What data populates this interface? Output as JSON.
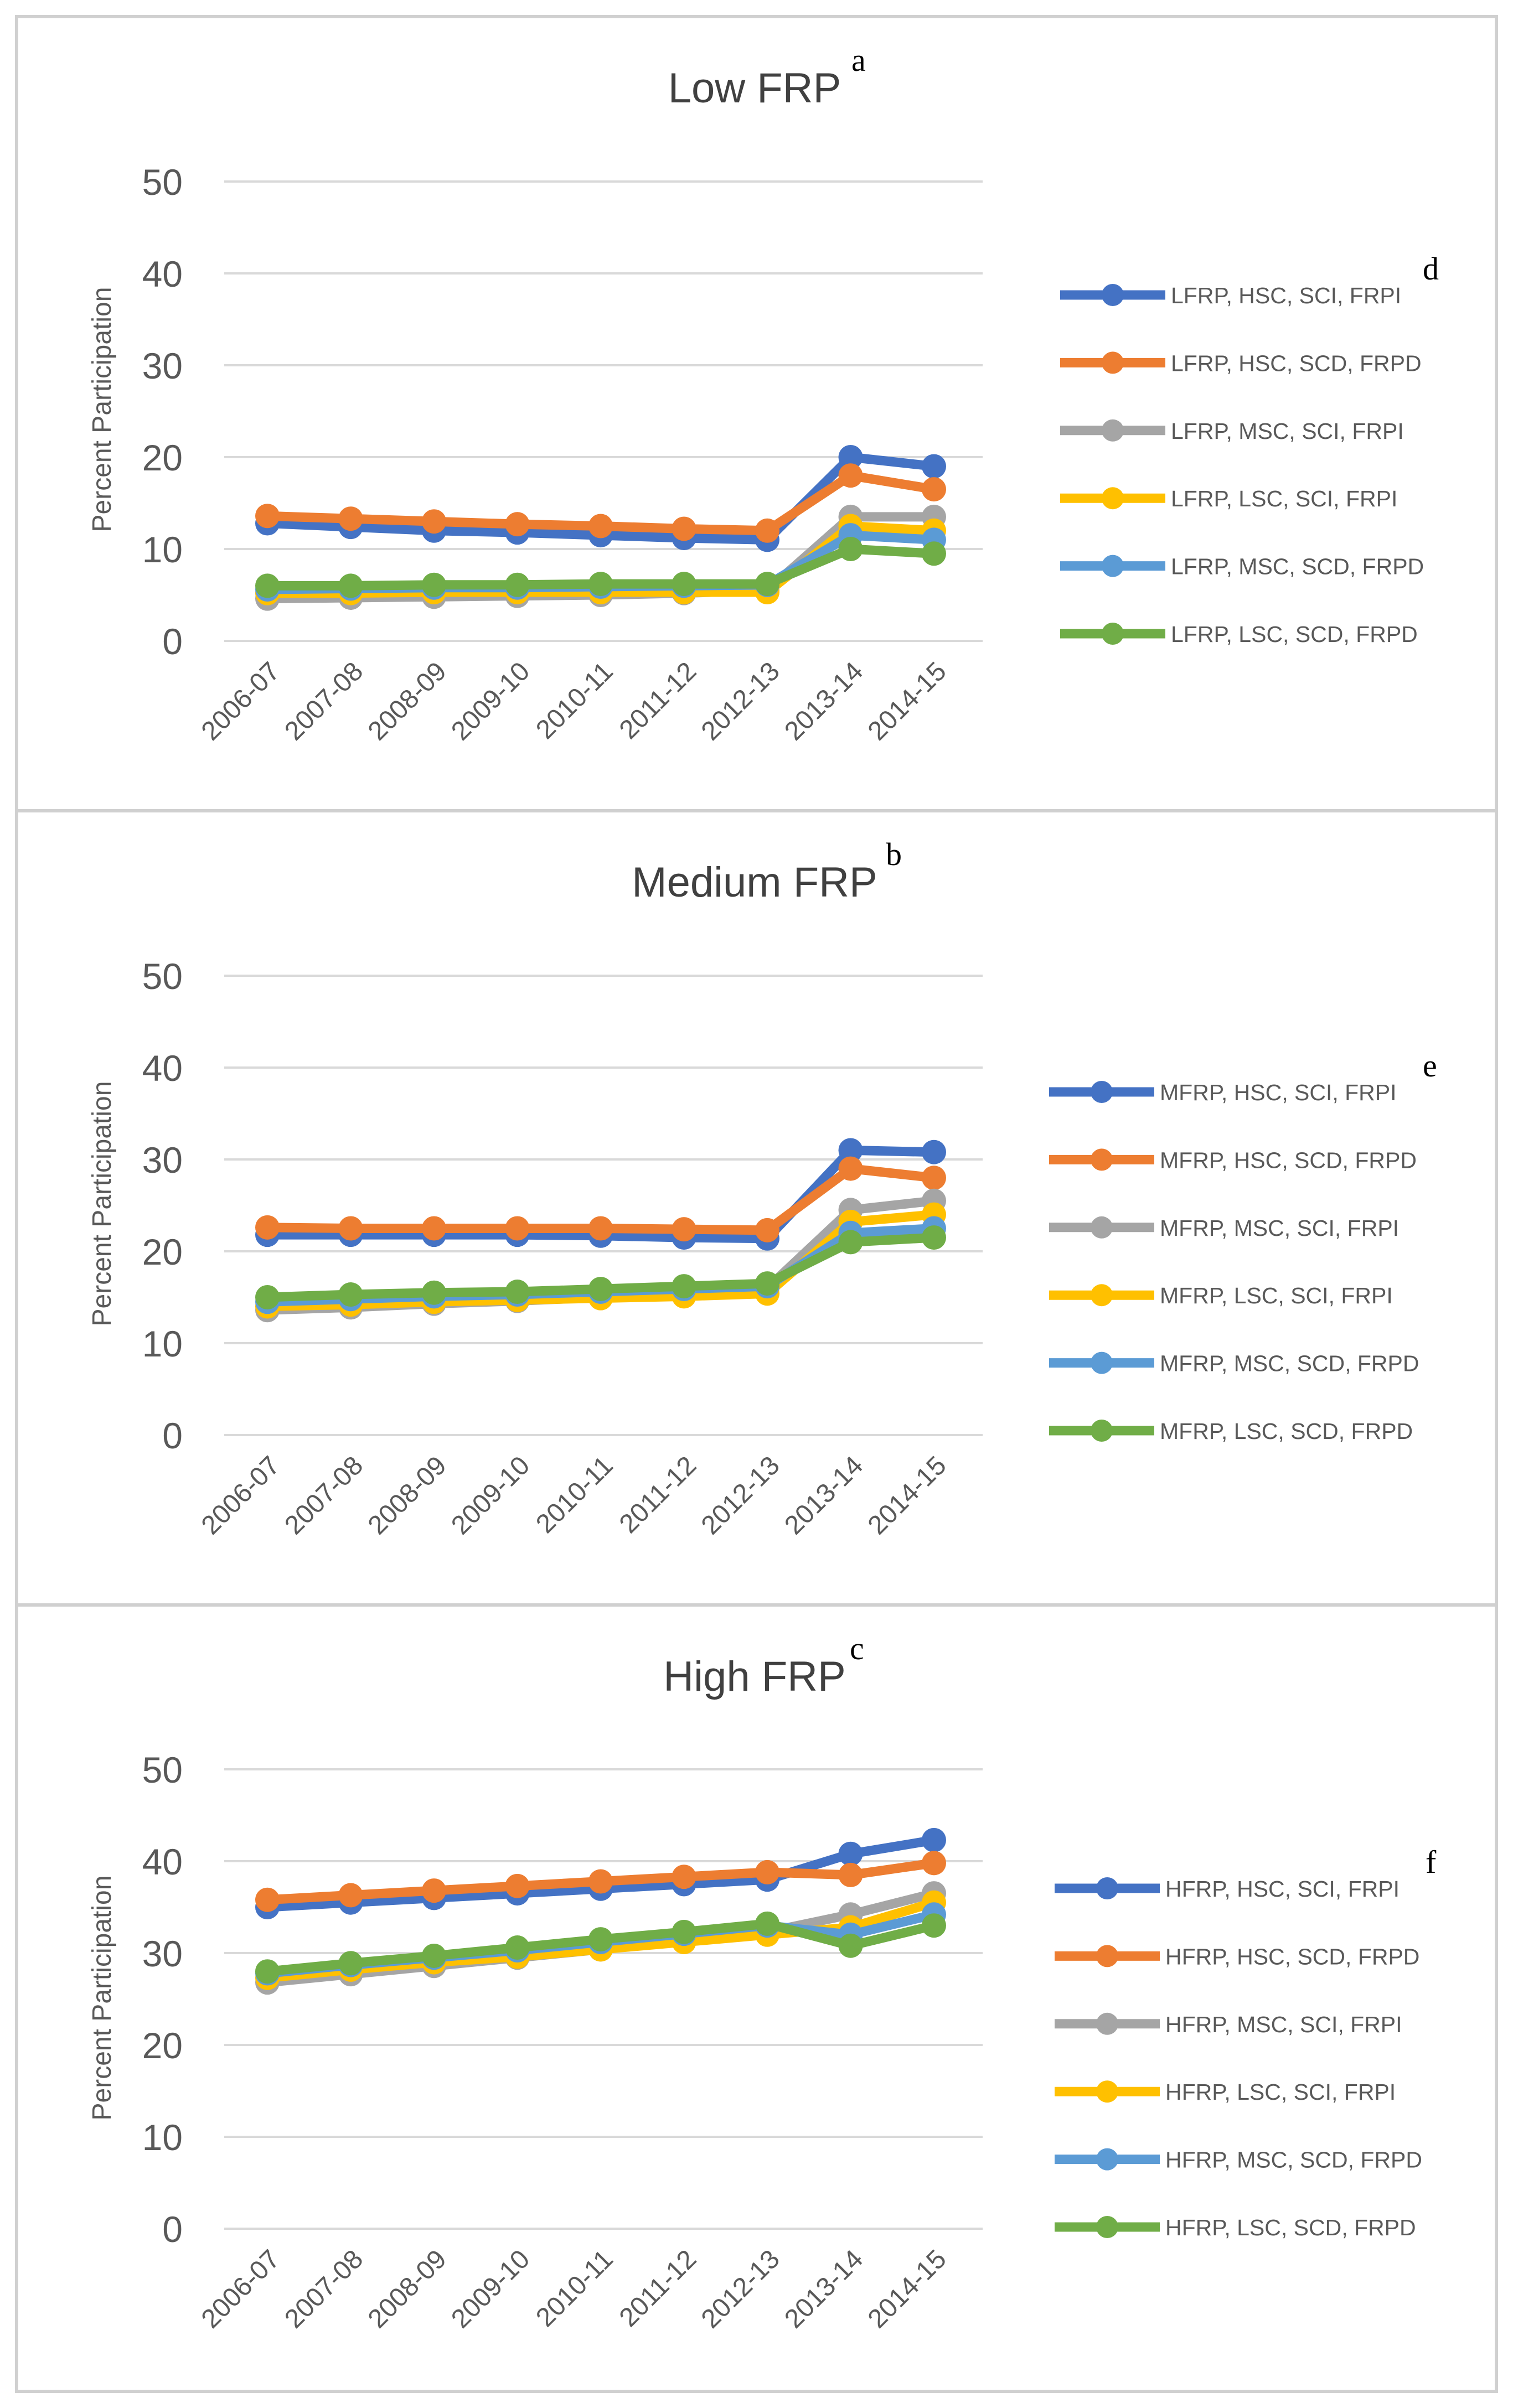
{
  "chart_data": [
    {
      "type": "line",
      "title": "Low FRP",
      "title_superscript": "a",
      "legend_superscript": "d",
      "ylabel": "Percent Participation",
      "xlabel": "",
      "ylim": [
        0,
        50
      ],
      "yticks": [
        "0",
        "10",
        "20",
        "30",
        "40",
        "50"
      ],
      "grid": true,
      "legend_position": "right",
      "categories": [
        "2006-07",
        "2007-08",
        "2008-09",
        "2009-10",
        "2010-11",
        "2011-12",
        "2012-13",
        "2013-14",
        "2014-15"
      ],
      "series": [
        {
          "name": "LFRP, HSC, SCI, FRPI",
          "color": "#4472C4",
          "values": [
            12.8,
            12.4,
            12.0,
            11.8,
            11.5,
            11.2,
            11.0,
            20.0,
            19.0
          ]
        },
        {
          "name": "LFRP, HSC, SCD, FRPD",
          "color": "#ED7D31",
          "values": [
            13.6,
            13.3,
            13.0,
            12.7,
            12.5,
            12.2,
            12.0,
            18.0,
            16.5
          ]
        },
        {
          "name": "LFRP, MSC, SCI, FRPI",
          "color": "#A5A5A5",
          "values": [
            4.6,
            4.7,
            4.8,
            4.9,
            5.0,
            5.2,
            5.5,
            13.5,
            13.5
          ]
        },
        {
          "name": "LFRP, LSC, SCI, FRPI",
          "color": "#FFC000",
          "values": [
            5.2,
            5.2,
            5.3,
            5.3,
            5.3,
            5.3,
            5.3,
            12.5,
            12.0
          ]
        },
        {
          "name": "LFRP, MSC, SCD, FRPD",
          "color": "#5B9BD5",
          "values": [
            5.6,
            5.7,
            5.8,
            5.8,
            5.9,
            6.0,
            6.1,
            11.5,
            11.0
          ]
        },
        {
          "name": "LFRP, LSC, SCD, FRPD",
          "color": "#70AD47",
          "values": [
            6.0,
            6.0,
            6.1,
            6.1,
            6.2,
            6.2,
            6.2,
            10.0,
            9.5
          ]
        }
      ]
    },
    {
      "type": "line",
      "title": "Medium FRP",
      "title_superscript": "b",
      "legend_superscript": "e",
      "ylabel": "Percent Participation",
      "xlabel": "",
      "ylim": [
        0,
        50
      ],
      "yticks": [
        "0",
        "10",
        "20",
        "30",
        "40",
        "50"
      ],
      "grid": true,
      "legend_position": "right",
      "categories": [
        "2006-07",
        "2007-08",
        "2008-09",
        "2009-10",
        "2010-11",
        "2011-12",
        "2012-13",
        "2013-14",
        "2014-15"
      ],
      "series": [
        {
          "name": "MFRP, HSC, SCI, FRPI",
          "color": "#4472C4",
          "values": [
            21.8,
            21.8,
            21.8,
            21.8,
            21.7,
            21.5,
            21.4,
            31.0,
            30.8
          ]
        },
        {
          "name": "MFRP, HSC, SCD, FRPD",
          "color": "#ED7D31",
          "values": [
            22.6,
            22.5,
            22.5,
            22.5,
            22.5,
            22.4,
            22.3,
            29.0,
            28.0
          ]
        },
        {
          "name": "MFRP, MSC, SCI, FRPI",
          "color": "#A5A5A5",
          "values": [
            13.6,
            13.9,
            14.3,
            14.6,
            15.0,
            15.5,
            16.0,
            24.5,
            25.5
          ]
        },
        {
          "name": "MFRP, LSC, SCI, FRPI",
          "color": "#FFC000",
          "values": [
            14.0,
            14.2,
            14.5,
            14.7,
            14.9,
            15.1,
            15.4,
            23.2,
            24.0
          ]
        },
        {
          "name": "MFRP, MSC, SCD, FRPD",
          "color": "#5B9BD5",
          "values": [
            14.5,
            14.8,
            15.1,
            15.3,
            15.6,
            15.9,
            16.2,
            22.0,
            22.5
          ]
        },
        {
          "name": "MFRP, LSC, SCD, FRPD",
          "color": "#70AD47",
          "values": [
            15.0,
            15.3,
            15.5,
            15.6,
            15.9,
            16.2,
            16.5,
            21.0,
            21.5
          ]
        }
      ]
    },
    {
      "type": "line",
      "title": "High FRP",
      "title_superscript": "c",
      "legend_superscript": "f",
      "ylabel": "Percent Participation",
      "xlabel": "",
      "ylim": [
        0,
        50
      ],
      "yticks": [
        "0",
        "10",
        "20",
        "30",
        "40",
        "50"
      ],
      "grid": true,
      "legend_position": "right",
      "categories": [
        "2006-07",
        "2007-08",
        "2008-09",
        "2009-10",
        "2010-11",
        "2011-12",
        "2012-13",
        "2013-14",
        "2014-15"
      ],
      "series": [
        {
          "name": "HFRP, HSC, SCI, FRPI",
          "color": "#4472C4",
          "values": [
            35.0,
            35.5,
            36.0,
            36.5,
            37.0,
            37.5,
            38.0,
            40.8,
            42.3
          ]
        },
        {
          "name": "HFRP, HSC, SCD, FRPD",
          "color": "#ED7D31",
          "values": [
            35.8,
            36.3,
            36.8,
            37.3,
            37.8,
            38.3,
            38.8,
            38.5,
            39.8
          ]
        },
        {
          "name": "HFRP, MSC, SCI, FRPI",
          "color": "#A5A5A5",
          "values": [
            26.8,
            27.7,
            28.6,
            29.5,
            30.4,
            31.3,
            32.3,
            34.2,
            36.5
          ]
        },
        {
          "name": "HFRP, LSC, SCI, FRPI",
          "color": "#FFC000",
          "values": [
            27.3,
            28.2,
            29.0,
            29.6,
            30.4,
            31.2,
            32.0,
            32.8,
            35.5
          ]
        },
        {
          "name": "HFRP, MSC, SCD, FRPD",
          "color": "#5B9BD5",
          "values": [
            27.8,
            28.7,
            29.5,
            30.3,
            31.2,
            32.1,
            33.0,
            32.0,
            34.2
          ]
        },
        {
          "name": "HFRP, LSC, SCD, FRPD",
          "color": "#70AD47",
          "values": [
            28.0,
            28.9,
            29.7,
            30.6,
            31.5,
            32.3,
            33.2,
            30.8,
            33.0
          ]
        }
      ]
    }
  ]
}
